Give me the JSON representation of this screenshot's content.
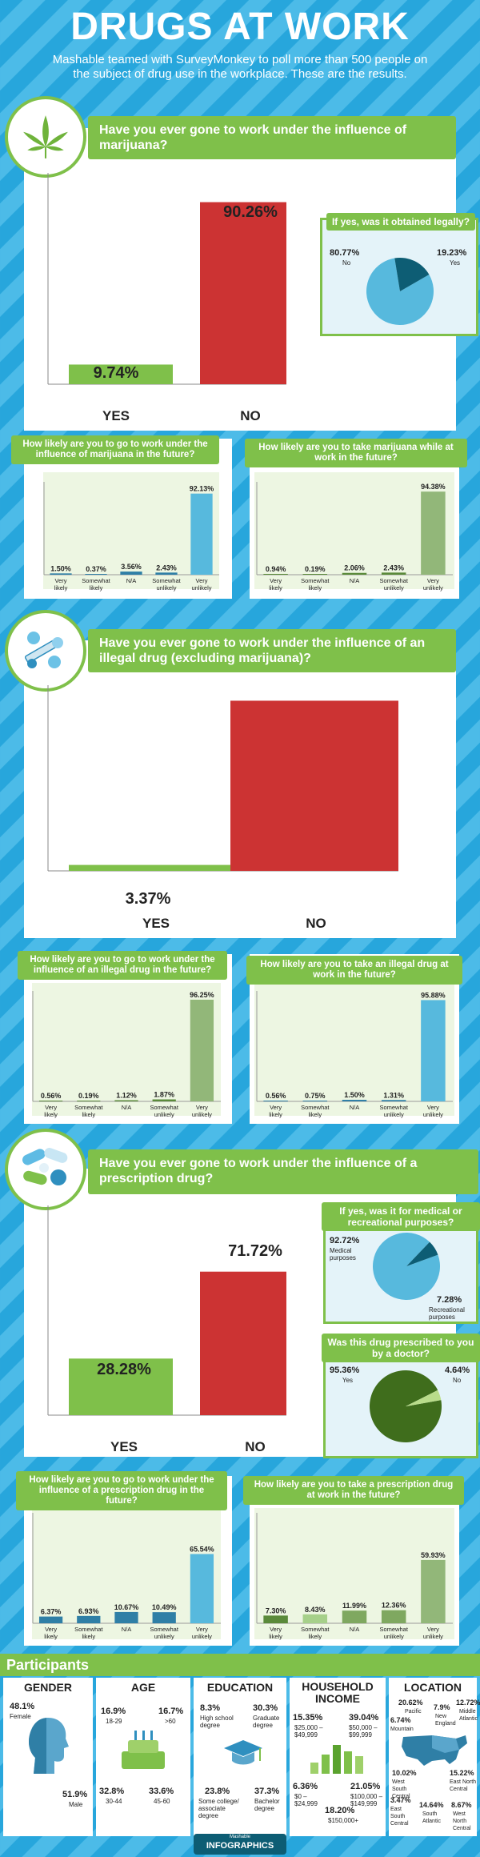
{
  "header": {
    "title": "DRUGS AT WORK",
    "subtitle": "Mashable teamed with SurveyMonkey to poll more than 500 people on the subject of drug use in the workplace. These are the results."
  },
  "colors": {
    "background": "#2aa8dd",
    "green": "#7fc04a",
    "red": "#cc3333",
    "light_blue": "#57b9dd",
    "dark_teal": "#0d5d74",
    "dark_green": "#3f6d1c",
    "sage": "#92b779"
  },
  "sections": [
    {
      "question": "Have you ever gone to work under the influence of marijuana?",
      "icon": "marijuana-leaf-icon",
      "yes_label": "YES",
      "no_label": "NO",
      "yes_pct": "9.74%",
      "no_pct": "90.26%",
      "sub_title": "If yes, was it obtained legally?",
      "sub_left_pct": "80.77%",
      "sub_left_label": "No",
      "sub_right_pct": "19.23%",
      "sub_right_label": "Yes"
    },
    {
      "question": "Have you ever gone to work under the influence of an illegal drug (excluding marijuana)?",
      "icon": "pills-syringe-icon",
      "yes_label": "YES",
      "no_label": "NO",
      "yes_pct": "3.37%",
      "no_pct": "96.63%"
    },
    {
      "question": "Have you ever gone to work under the influence of a prescription drug?",
      "icon": "capsules-icon",
      "yes_label": "YES",
      "no_label": "NO",
      "yes_pct": "28.28%",
      "no_pct": "71.72%",
      "sub1_title": "If yes, was it for medical or recreational purposes?",
      "sub1_a_pct": "92.72%",
      "sub1_a_label": "Medical purposes",
      "sub1_b_pct": "7.28%",
      "sub1_b_label": "Recreational purposes",
      "sub2_title": "Was this drug prescribed to you by a doctor?",
      "sub2_a_pct": "95.36%",
      "sub2_a_label": "Yes",
      "sub2_b_pct": "4.64%",
      "sub2_b_label": "No"
    }
  ],
  "small_titles": [
    "How likely are you to go to work under the influence of marijuana in the future?",
    "How likely are you to take marijuana while at work in the future?",
    "How likely are you to go to work under the influence of an illegal drug in the future?",
    "How likely are you to take an illegal drug at work in the future?",
    "How likely are you to go to work under the influence of a prescription drug in the future?",
    "How likely are you to take a prescription drug at work in the future?"
  ],
  "small_categories": [
    "Very likely",
    "Somewhat likely",
    "N/A",
    "Somewhat unlikely",
    "Very unlikely"
  ],
  "chart_data": [
    {
      "type": "bar",
      "title": "Have you ever gone to work under the influence of marijuana?",
      "categories": [
        "YES",
        "NO"
      ],
      "values": [
        9.74,
        90.26
      ],
      "ylim": [
        0,
        100
      ]
    },
    {
      "type": "pie",
      "title": "If yes, was it obtained legally?",
      "categories": [
        "No",
        "Yes"
      ],
      "values": [
        80.77,
        19.23
      ]
    },
    {
      "type": "bar",
      "title": "How likely are you to go to work under the influence of marijuana in the future?",
      "categories": [
        "Very likely",
        "Somewhat likely",
        "N/A",
        "Somewhat unlikely",
        "Very unlikely"
      ],
      "values": [
        1.5,
        0.37,
        3.56,
        2.43,
        92.13
      ],
      "labels": [
        "1.50%",
        "0.37%",
        "3.56%",
        "2.43%",
        "92.13%"
      ]
    },
    {
      "type": "bar",
      "title": "How likely are you to take marijuana while at work in the future?",
      "categories": [
        "Very likely",
        "Somewhat likely",
        "N/A",
        "Somewhat unlikely",
        "Very unlikely"
      ],
      "values": [
        0.94,
        0.19,
        2.06,
        2.43,
        94.38
      ],
      "labels": [
        "0.94%",
        "0.19%",
        "2.06%",
        "2.43%",
        "94.38%"
      ]
    },
    {
      "type": "bar",
      "title": "Have you ever gone to work under the influence of an illegal drug (excluding marijuana)?",
      "categories": [
        "YES",
        "NO"
      ],
      "values": [
        3.37,
        96.63
      ],
      "ylim": [
        0,
        100
      ]
    },
    {
      "type": "bar",
      "title": "How likely are you to go to work under the influence of an illegal drug in the future?",
      "categories": [
        "Very likely",
        "Somewhat likely",
        "N/A",
        "Somewhat unlikely",
        "Very unlikely"
      ],
      "values": [
        0.56,
        0.19,
        1.12,
        1.87,
        96.25
      ],
      "labels": [
        "0.56%",
        "0.19%",
        "1.12%",
        "1.87%",
        "96.25%"
      ]
    },
    {
      "type": "bar",
      "title": "How likely are you to take an illegal drug at work in the future?",
      "categories": [
        "Very likely",
        "Somewhat likely",
        "N/A",
        "Somewhat unlikely",
        "Very unlikely"
      ],
      "values": [
        0.56,
        0.75,
        1.5,
        1.31,
        95.88
      ],
      "labels": [
        "0.56%",
        "0.75%",
        "1.50%",
        "1.31%",
        "95.88%"
      ]
    },
    {
      "type": "bar",
      "title": "Have you ever gone to work under the influence of a prescription drug?",
      "categories": [
        "YES",
        "NO"
      ],
      "values": [
        28.28,
        71.72
      ],
      "ylim": [
        0,
        100
      ]
    },
    {
      "type": "pie",
      "title": "If yes, was it for medical or recreational purposes?",
      "categories": [
        "Medical purposes",
        "Recreational purposes"
      ],
      "values": [
        92.72,
        7.28
      ]
    },
    {
      "type": "pie",
      "title": "Was this drug prescribed to you by a doctor?",
      "categories": [
        "Yes",
        "No"
      ],
      "values": [
        95.36,
        4.64
      ]
    },
    {
      "type": "bar",
      "title": "How likely are you to go to work under the influence of a prescription drug in the future?",
      "categories": [
        "Very likely",
        "Somewhat likely",
        "N/A",
        "Somewhat unlikely",
        "Very unlikely"
      ],
      "values": [
        6.37,
        6.93,
        10.67,
        10.49,
        65.54
      ],
      "labels": [
        "6.37%",
        "6.93%",
        "10.67%",
        "10.49%",
        "65.54%"
      ]
    },
    {
      "type": "bar",
      "title": "How likely are you to take a prescription drug at work in the future?",
      "categories": [
        "Very likely",
        "Somewhat likely",
        "N/A",
        "Somewhat unlikely",
        "Very unlikely"
      ],
      "values": [
        7.3,
        8.43,
        11.99,
        12.36,
        59.93
      ],
      "labels": [
        "7.30%",
        "8.43%",
        "11.99%",
        "12.36%",
        "59.93%"
      ]
    }
  ],
  "participants": {
    "title": "Participants",
    "gender": {
      "title": "GENDER",
      "female_pct": "48.1%",
      "female_label": "Female",
      "male_pct": "51.9%",
      "male_label": "Male"
    },
    "age": {
      "title": "AGE",
      "a_pct": "16.9%",
      "a_label": "18-29",
      "b_pct": "16.7%",
      "b_label": ">60",
      "c_pct": "32.8%",
      "c_label": "30-44",
      "d_pct": "33.6%",
      "d_label": "45-60"
    },
    "education": {
      "title": "EDUCATION",
      "a_pct": "8.3%",
      "a_label": "High school degree",
      "b_pct": "30.3%",
      "b_label": "Graduate degree",
      "c_pct": "23.8%",
      "c_label": "Some college/ associate degree",
      "d_pct": "37.3%",
      "d_label": "Bachelor degree"
    },
    "income": {
      "title": "HOUSEHOLD INCOME",
      "a_pct": "15.35%",
      "a_label": "$25,000 – $49,999",
      "b_pct": "39.04%",
      "b_label": "$50,000 – $99,999",
      "c_pct": "6.36%",
      "c_label": "$0 – $24,999",
      "d_pct": "21.05%",
      "d_label": "$100,000 – $149,999",
      "e_pct": "18.20%",
      "e_label": "$150,000+"
    },
    "location": {
      "title": "LOCATION",
      "pacific_pct": "20.62%",
      "pacific": "Pacific",
      "mountain_pct": "6.74%",
      "mountain": "Mountain",
      "ne_pct": "7.9%",
      "ne": "New England",
      "ma_pct": "12.72%",
      "ma": "Middle Atlantic",
      "wsc_pct": "10.02%",
      "wsc": "West South Central",
      "enc_pct": "15.22%",
      "enc": "East North Central",
      "esc_pct": "3.47%",
      "esc": "East South Central",
      "sa_pct": "14.64%",
      "sa": "South Atlantic",
      "wnc_pct": "8.67%",
      "wnc": "West North Central"
    }
  },
  "footer": {
    "brand_small": "Mashable",
    "brand": "INFOGRAPHICS"
  }
}
